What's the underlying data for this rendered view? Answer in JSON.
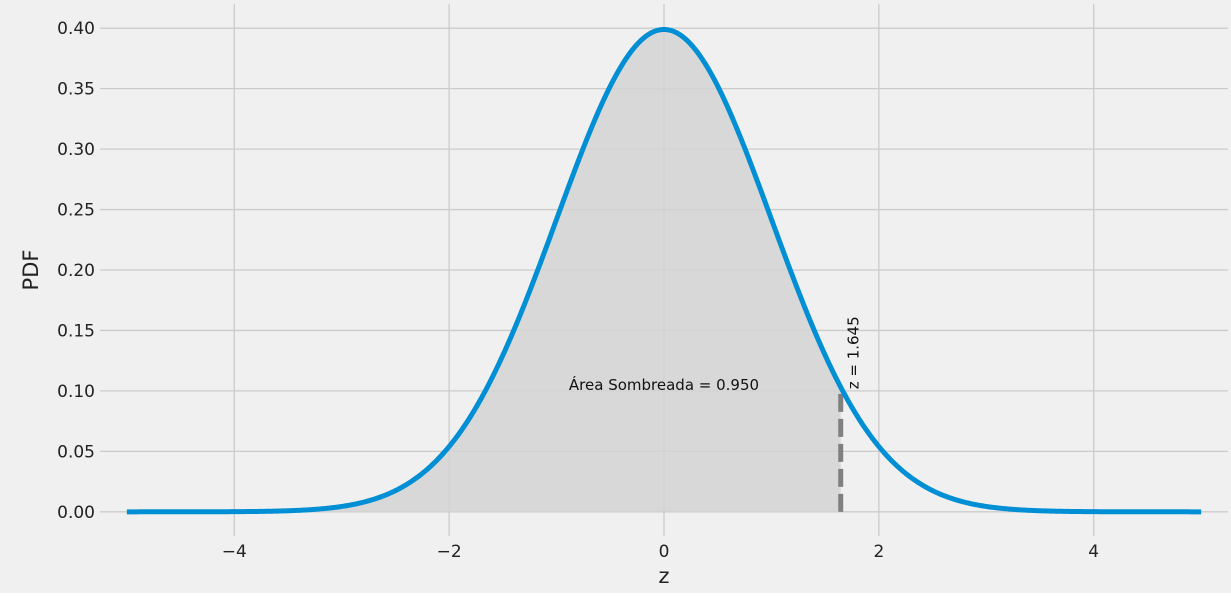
{
  "chart_data": {
    "type": "area",
    "title": "",
    "xlabel": "z",
    "ylabel": "PDF",
    "xlim": [
      -5.25,
      5.25
    ],
    "ylim": [
      -0.02,
      0.42
    ],
    "xticks": [
      -4,
      -2,
      0,
      2,
      4
    ],
    "xtick_labels": [
      "−4",
      "−2",
      "0",
      "2",
      "4"
    ],
    "yticks": [
      0.0,
      0.05,
      0.1,
      0.15,
      0.2,
      0.25,
      0.3,
      0.35,
      0.4
    ],
    "ytick_labels": [
      "0.00",
      "0.05",
      "0.10",
      "0.15",
      "0.20",
      "0.25",
      "0.30",
      "0.35",
      "0.40"
    ],
    "grid": true,
    "series": [
      {
        "kind": "standard-normal-pdf",
        "mean": 0,
        "std": 1,
        "x_range": [
          -5,
          5
        ]
      }
    ],
    "shaded_region": {
      "from": -5,
      "to": 1.645,
      "area": 0.95
    },
    "critical_line": {
      "x": 1.645,
      "y_top": 0.103
    },
    "annotations": {
      "area_text": "Área Sombreada = 0.950",
      "z_text": "z = 1.645"
    },
    "colors": {
      "figure_bg": "#f0f0f0",
      "grid": "#cbcbcb",
      "curve": "#008fd5",
      "fill": "#d4d4d4",
      "critical_line": "#808080"
    }
  }
}
